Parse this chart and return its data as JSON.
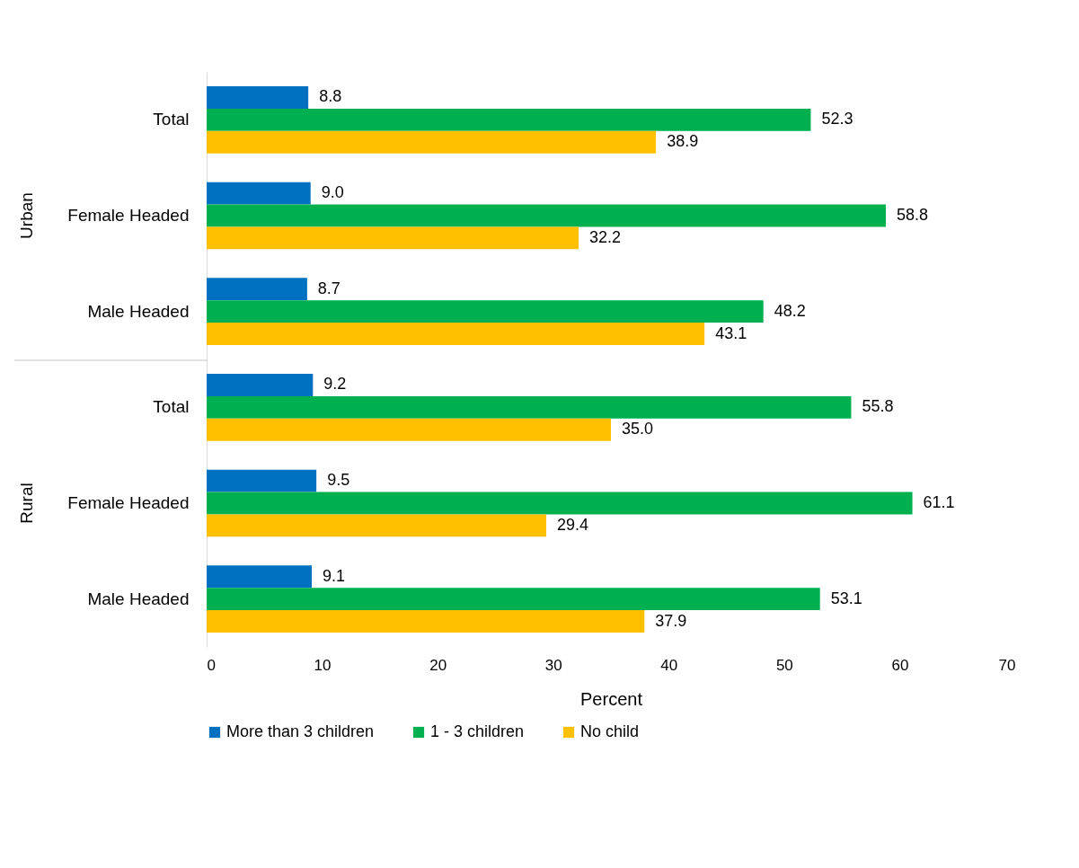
{
  "chart_data": {
    "type": "bar",
    "orientation": "horizontal",
    "xlabel": "Percent",
    "categories": [
      "Total",
      "Female Headed",
      "Male Headed",
      "Total",
      "Female Headed",
      "Male Headed"
    ],
    "series": [
      {
        "name": "More than 3 children",
        "color": "#0070c0",
        "values": [
          8.8,
          9.0,
          8.7,
          9.2,
          9.5,
          9.1
        ],
        "value_labels": [
          "8.8",
          "9.0",
          "8.7",
          "9.2",
          "9.5",
          "9.1"
        ]
      },
      {
        "name": "1 - 3 children",
        "color": "#00b050",
        "values": [
          52.3,
          58.8,
          48.2,
          55.8,
          61.1,
          53.1
        ],
        "value_labels": [
          "52.3",
          "58.8",
          "48.2",
          "55.8",
          "61.1",
          "53.1"
        ]
      },
      {
        "name": "No child",
        "color": "#ffc000",
        "values": [
          38.9,
          32.2,
          43.1,
          35.0,
          29.4,
          37.9
        ],
        "value_labels": [
          "38.9",
          "32.2",
          "43.1",
          "35.0",
          "29.4",
          "37.9"
        ]
      }
    ],
    "xlim": [
      0,
      70
    ],
    "xticks": [
      0,
      10,
      20,
      30,
      40,
      50,
      60,
      70
    ],
    "annotations": [
      "Urban",
      "Rural"
    ],
    "grid": false,
    "legend": "bottom"
  }
}
